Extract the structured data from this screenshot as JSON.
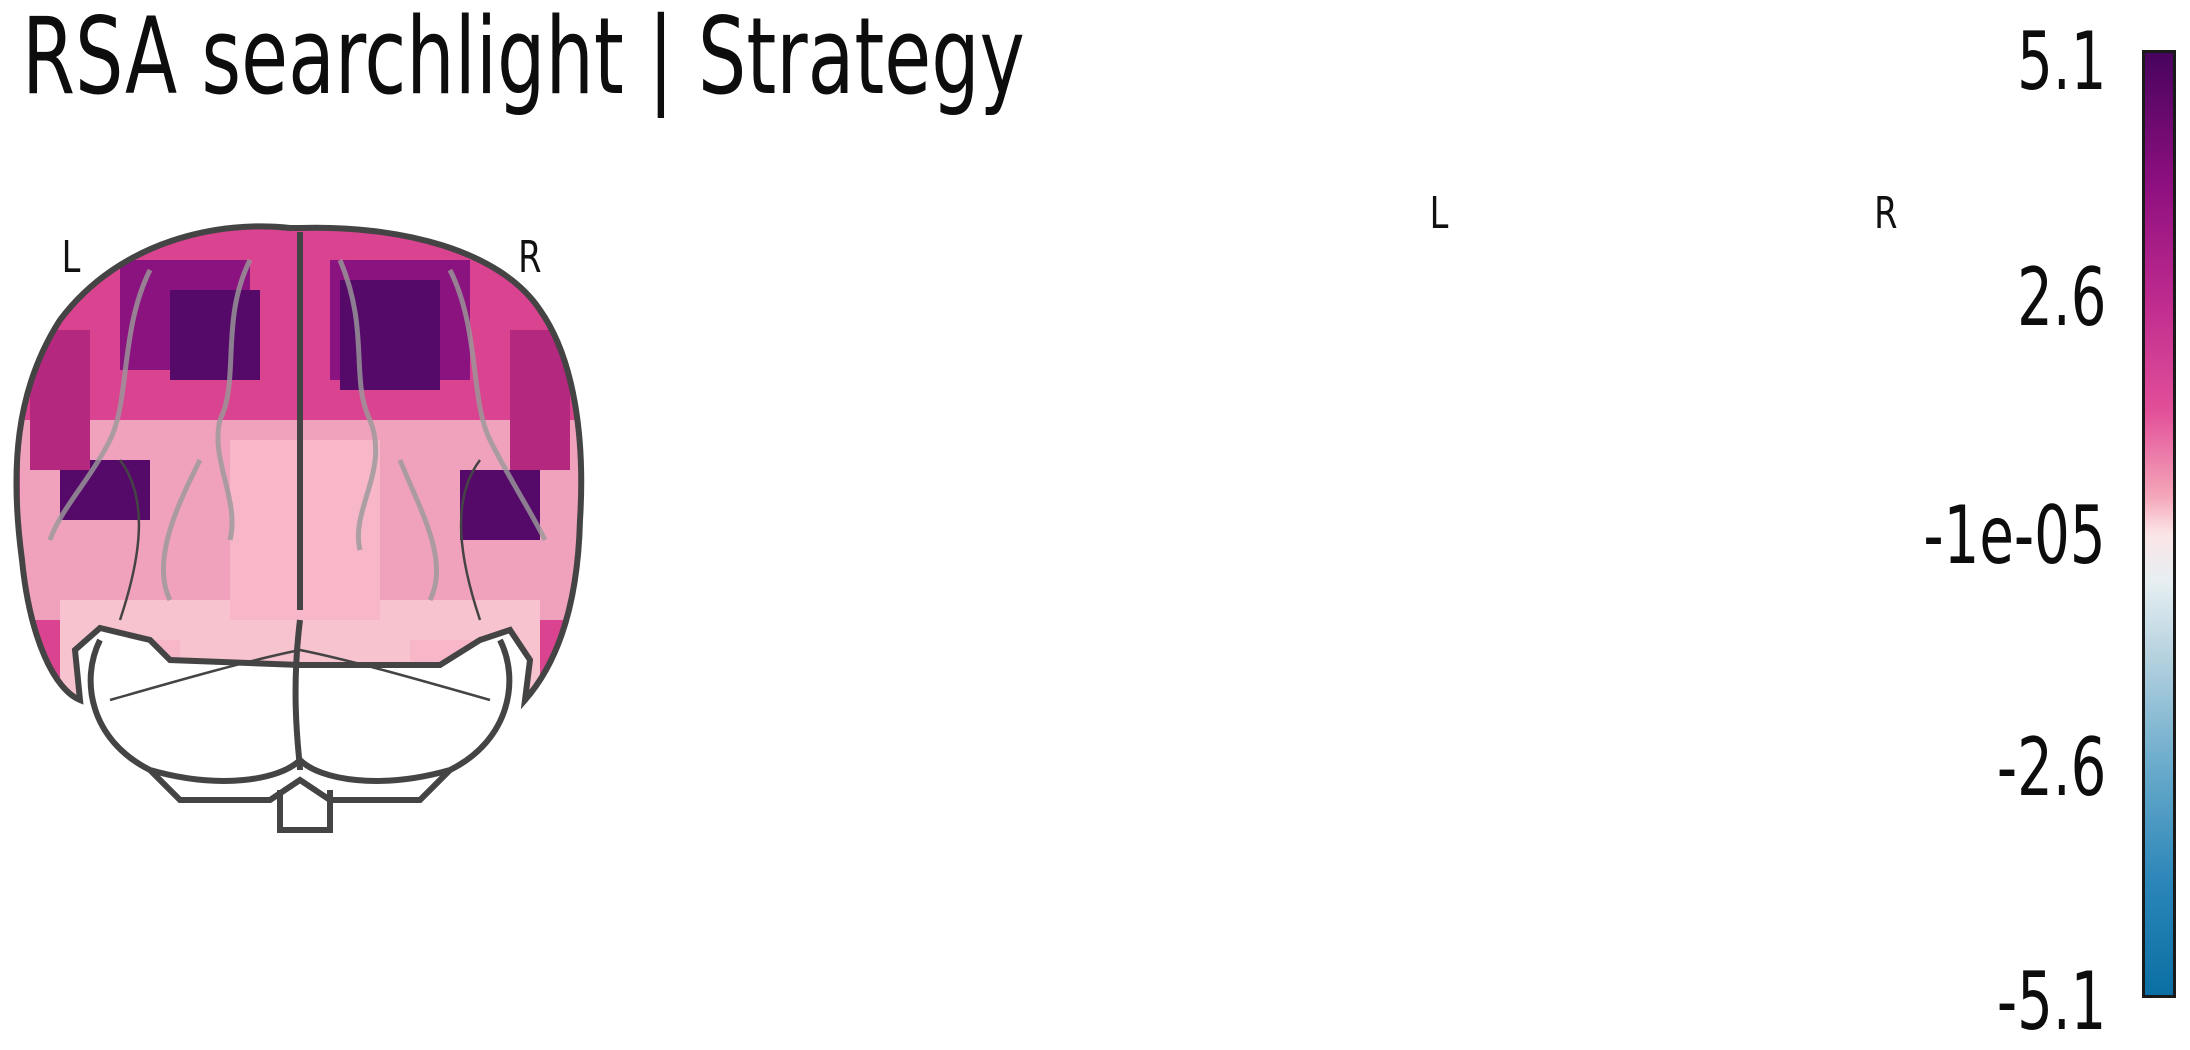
{
  "title": "RSA searchlight | Strategy",
  "views": {
    "coronal": {
      "left_label": "L",
      "right_label": "R"
    },
    "axial": {
      "left_label": "L",
      "right_label": "R"
    }
  },
  "colorbar": {
    "ticks": [
      "5.1",
      "2.6",
      "-1e-05",
      "-2.6",
      "-5.1"
    ],
    "max": 5.1,
    "min": -5.1,
    "colors": {
      "top": "#48045e",
      "mid": "#fce4e6",
      "bottom": "#0b6fa3"
    }
  }
}
